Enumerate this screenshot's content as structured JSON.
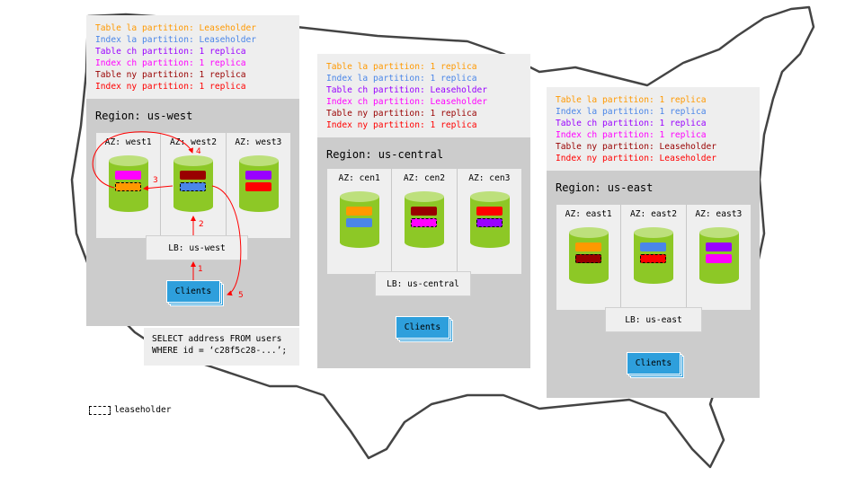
{
  "partition_colors": {
    "table-la": "#ff9900",
    "index-la": "#4a86e8",
    "table-ch": "#9900ff",
    "index-ch": "#ff00ff",
    "table-ny": "#990000",
    "index-ny": "#ff0000"
  },
  "regions": [
    {
      "id": "us-west",
      "legend": [
        {
          "partition": "table-la",
          "text": "Table la partition: Leaseholder"
        },
        {
          "partition": "index-la",
          "text": "Index la partition: Leaseholder"
        },
        {
          "partition": "table-ch",
          "text": "Table ch partition: 1 replica"
        },
        {
          "partition": "index-ch",
          "text": "Index ch partition: 1 replica"
        },
        {
          "partition": "table-ny",
          "text": "Table ny partition: 1 replica"
        },
        {
          "partition": "index-ny",
          "text": "Index ny partition: 1 replica"
        }
      ],
      "title": "Region: us-west",
      "azs": [
        {
          "label": "AZ: west1",
          "blocks": [
            {
              "partition": "index-ch",
              "leaseholder": false
            },
            {
              "partition": "table-la",
              "leaseholder": true
            }
          ]
        },
        {
          "label": "AZ: west2",
          "blocks": [
            {
              "partition": "table-ny",
              "leaseholder": false
            },
            {
              "partition": "index-la",
              "leaseholder": true
            }
          ]
        },
        {
          "label": "AZ: west3",
          "blocks": [
            {
              "partition": "table-ch",
              "leaseholder": false
            },
            {
              "partition": "index-ny",
              "leaseholder": false
            }
          ]
        }
      ],
      "lb": "LB: us-west",
      "clients": "Clients"
    },
    {
      "id": "us-central",
      "legend": [
        {
          "partition": "table-la",
          "text": "Table la partition: 1 replica"
        },
        {
          "partition": "index-la",
          "text": "Index la partition: 1 replica"
        },
        {
          "partition": "table-ch",
          "text": "Table ch partition: Leaseholder"
        },
        {
          "partition": "index-ch",
          "text": "Index ch partition: Leaseholder"
        },
        {
          "partition": "table-ny",
          "text": "Table ny partition: 1 replica"
        },
        {
          "partition": "index-ny",
          "text": "Index ny partition: 1 replica"
        }
      ],
      "title": "Region: us-central",
      "azs": [
        {
          "label": "AZ: cen1",
          "blocks": [
            {
              "partition": "table-la",
              "leaseholder": false
            },
            {
              "partition": "index-la",
              "leaseholder": false
            }
          ]
        },
        {
          "label": "AZ: cen2",
          "blocks": [
            {
              "partition": "table-ny",
              "leaseholder": false
            },
            {
              "partition": "index-ch",
              "leaseholder": true
            }
          ]
        },
        {
          "label": "AZ: cen3",
          "blocks": [
            {
              "partition": "index-ny",
              "leaseholder": false
            },
            {
              "partition": "table-ch",
              "leaseholder": true
            }
          ]
        }
      ],
      "lb": "LB: us-central",
      "clients": "Clients"
    },
    {
      "id": "us-east",
      "legend": [
        {
          "partition": "table-la",
          "text": "Table la partition: 1 replica"
        },
        {
          "partition": "index-la",
          "text": "Index la partition: 1 replica"
        },
        {
          "partition": "table-ch",
          "text": "Table ch partition: 1 replica"
        },
        {
          "partition": "index-ch",
          "text": "Index ch partition: 1 replica"
        },
        {
          "partition": "table-ny",
          "text": "Table ny partition: Leaseholder"
        },
        {
          "partition": "index-ny",
          "text": "Index ny partition: Leaseholder"
        }
      ],
      "title": "Region: us-east",
      "azs": [
        {
          "label": "AZ: east1",
          "blocks": [
            {
              "partition": "table-la",
              "leaseholder": false
            },
            {
              "partition": "table-ny",
              "leaseholder": true
            }
          ]
        },
        {
          "label": "AZ: east2",
          "blocks": [
            {
              "partition": "index-la",
              "leaseholder": false
            },
            {
              "partition": "index-ny",
              "leaseholder": true
            }
          ]
        },
        {
          "label": "AZ: east3",
          "blocks": [
            {
              "partition": "table-ch",
              "leaseholder": false
            },
            {
              "partition": "index-ch",
              "leaseholder": false
            }
          ]
        }
      ],
      "lb": "LB: us-east",
      "clients": "Clients"
    }
  ],
  "query": {
    "line1": "SELECT address FROM users",
    "line2": "WHERE id = ‘c28f5c28-...’;"
  },
  "flow_steps": [
    "1",
    "2",
    "3",
    "4",
    "5"
  ],
  "leaseholder_key": "leaseholder"
}
